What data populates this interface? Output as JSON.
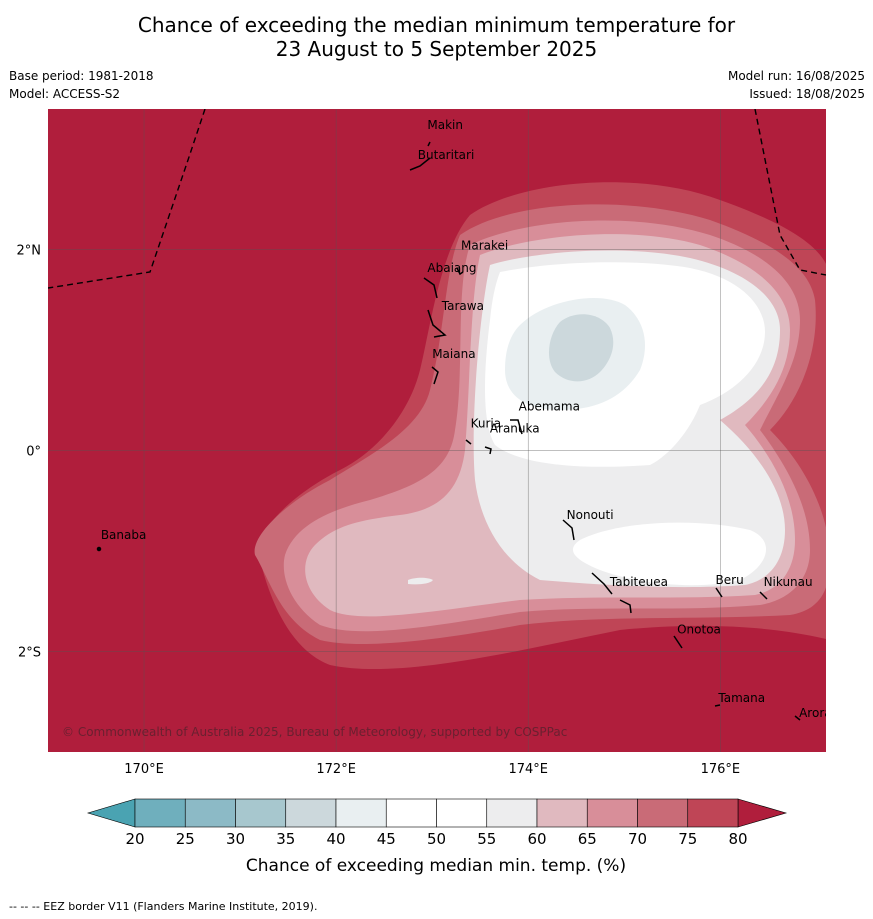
{
  "title_line1": "Chance of exceeding the median minimum temperature for",
  "title_line2": "23 August to 5 September 2025",
  "meta": {
    "base_period": "Base period: 1981-2018",
    "model": "Model: ACCESS-S2",
    "model_run": "Model run: 16/08/2025",
    "issued": "Issued: 18/08/2025"
  },
  "map": {
    "lon_range": [
      169.0,
      177.1
    ],
    "lat_range": [
      -3.0,
      3.4
    ],
    "lon_ticks": [
      {
        "value": 170,
        "label": "170°E"
      },
      {
        "value": 172,
        "label": "172°E"
      },
      {
        "value": 174,
        "label": "174°E"
      },
      {
        "value": 176,
        "label": "176°E"
      }
    ],
    "lat_ticks": [
      {
        "value": 2,
        "label": "2°N"
      },
      {
        "value": 0,
        "label": "0°"
      },
      {
        "value": -2,
        "label": "2°S"
      }
    ],
    "background_color": "#b01e3c",
    "copyright": "© Commonwealth of Australia 2025, Bureau of Meteorology, supported by COSPPac",
    "islands": [
      {
        "name": "Makin",
        "lon": 172.95,
        "lat": 3.2
      },
      {
        "name": "Butaritari",
        "lon": 172.85,
        "lat": 2.9
      },
      {
        "name": "Marakei",
        "lon": 173.3,
        "lat": 2.0
      },
      {
        "name": "Abaiang",
        "lon": 172.95,
        "lat": 1.78
      },
      {
        "name": "Tarawa",
        "lon": 173.1,
        "lat": 1.4
      },
      {
        "name": "Maiana",
        "lon": 173.0,
        "lat": 0.92
      },
      {
        "name": "Abemama",
        "lon": 173.9,
        "lat": 0.4
      },
      {
        "name": "Kuria",
        "lon": 173.4,
        "lat": 0.23
      },
      {
        "name": "Aranuka",
        "lon": 173.6,
        "lat": 0.18
      },
      {
        "name": "Nonouti",
        "lon": 174.4,
        "lat": -0.68
      },
      {
        "name": "Banaba",
        "lon": 169.55,
        "lat": -0.88
      },
      {
        "name": "Tabiteuea",
        "lon": 174.85,
        "lat": -1.35
      },
      {
        "name": "Beru",
        "lon": 175.95,
        "lat": -1.33
      },
      {
        "name": "Nikunau",
        "lon": 176.45,
        "lat": -1.35
      },
      {
        "name": "Onotoa",
        "lon": 175.55,
        "lat": -1.82
      },
      {
        "name": "Tamana",
        "lon": 175.98,
        "lat": -2.5
      },
      {
        "name": "Arorae",
        "lon": 176.82,
        "lat": -2.65
      }
    ]
  },
  "colorbar": {
    "label": "Chance of exceeding median min. temp. (%)",
    "ticks": [
      "20",
      "25",
      "30",
      "35",
      "40",
      "45",
      "50",
      "55",
      "60",
      "65",
      "70",
      "75",
      "80"
    ],
    "colors": [
      "#6fafbd",
      "#8cbac6",
      "#a7c7ce",
      "#ccd8dc",
      "#e9eff1",
      "#ffffff",
      "#ffffff",
      "#ededee",
      "#e0b9bf",
      "#d88e99",
      "#c96b77",
      "#bf4556"
    ],
    "low_extend_color": "#4aa3b2",
    "high_extend_color": "#b01e3c"
  },
  "footnote": "--  --  -- EEZ border V11 (Flanders Marine Institute, 2019)."
}
